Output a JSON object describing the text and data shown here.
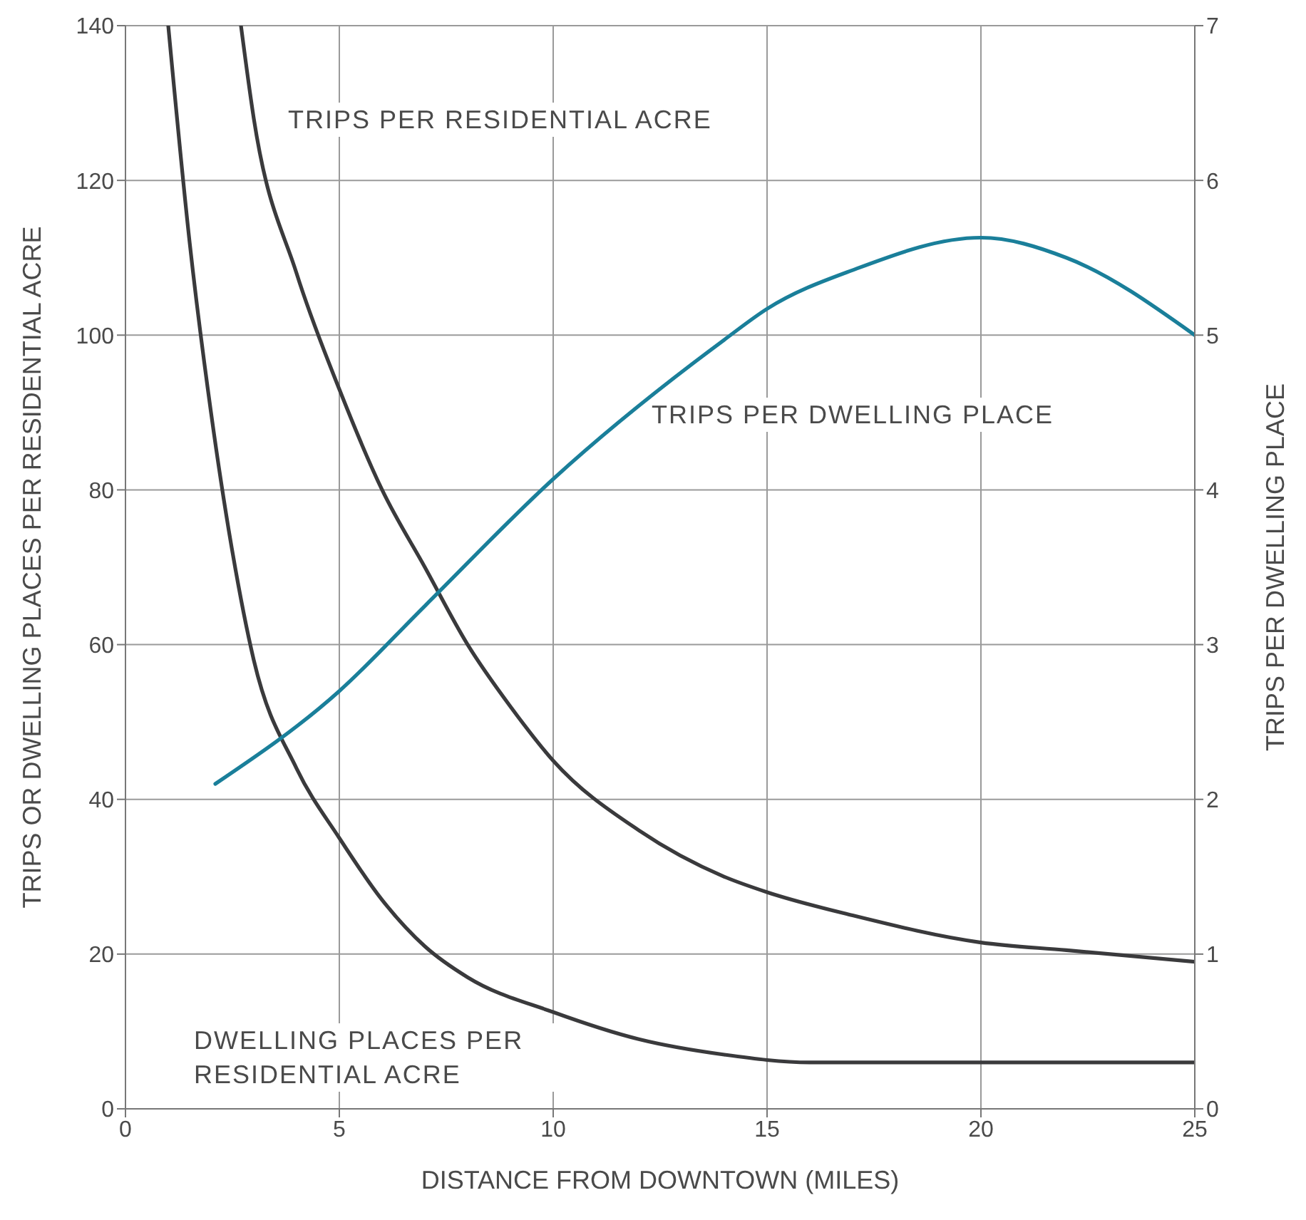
{
  "chart_data": {
    "type": "line",
    "xlabel": "DISTANCE FROM DOWNTOWN (MILES)",
    "ylabel": "TRIPS OR DWELLING PLACES PER RESIDENTIAL ACRE",
    "y2label": "TRIPS PER DWELLING PLACE",
    "xlim": [
      0,
      25
    ],
    "xticks": [
      0,
      5,
      10,
      15,
      20,
      25
    ],
    "ylim": [
      0,
      140
    ],
    "yticks": [
      0,
      20,
      40,
      60,
      80,
      100,
      120,
      140
    ],
    "y2lim": [
      0,
      7
    ],
    "y2ticks": [
      0,
      1,
      2,
      3,
      4,
      5,
      6,
      7
    ],
    "grid": true,
    "series": [
      {
        "name": "TRIPS PER RESIDENTIAL ACRE",
        "color": "#3a3a3c",
        "x": [
          2.7,
          3,
          4,
          5,
          6,
          7,
          8,
          9,
          10,
          12,
          14,
          15,
          17,
          20,
          22,
          25
        ],
        "values": [
          140,
          128,
          108,
          93,
          80,
          70,
          60,
          52,
          45,
          36,
          30,
          28,
          25,
          21.5,
          20.5,
          19
        ]
      },
      {
        "name": "DWELLING PLACES PER RESIDENTIAL ACRE",
        "color": "#3a3a3c",
        "x": [
          1,
          1.5,
          2,
          2.5,
          3,
          4,
          5,
          6,
          7,
          8,
          10,
          12,
          14,
          16,
          20,
          25
        ],
        "values": [
          140,
          112,
          90,
          72,
          58,
          44,
          35,
          27,
          21,
          17,
          12.5,
          9,
          7,
          6,
          6,
          6
        ]
      },
      {
        "name": "TRIPS PER DWELLING PLACE",
        "color": "#1a7f9a",
        "axis": "y2",
        "x": [
          2.1,
          5,
          7,
          10,
          14,
          15,
          17,
          20,
          22,
          25
        ],
        "values": [
          2.1,
          2.7,
          3.25,
          4.07,
          4.97,
          5.17,
          5.42,
          5.63,
          5.5,
          5.0
        ]
      }
    ]
  }
}
